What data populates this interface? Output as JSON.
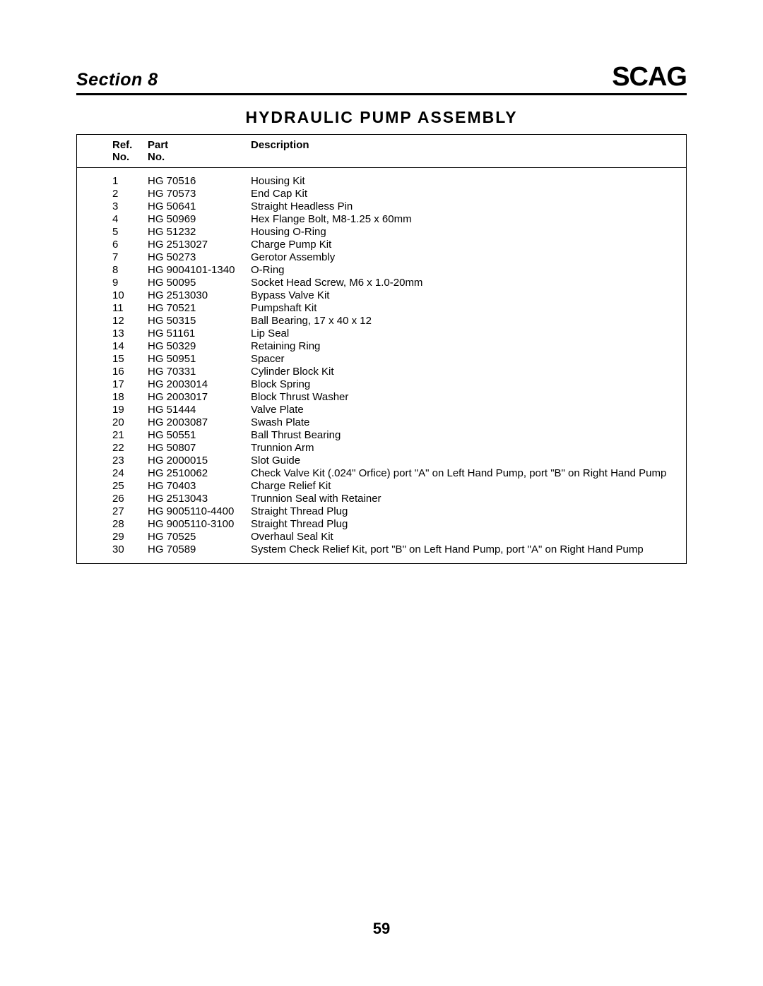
{
  "header": {
    "section_label": "Section 8",
    "logo_text": "SCAG"
  },
  "title": "HYDRAULIC  PUMP ASSEMBLY",
  "table": {
    "columns": {
      "refno_line1": "Ref.",
      "refno_line2": "No.",
      "partno_line1": "Part",
      "partno_line2": "No.",
      "desc_line1": "",
      "desc_line2": "Description"
    },
    "rows": [
      {
        "ref": "1",
        "part": "HG 70516",
        "desc": "Housing Kit"
      },
      {
        "ref": "2",
        "part": "HG 70573",
        "desc": "End Cap Kit"
      },
      {
        "ref": "3",
        "part": "HG 50641",
        "desc": "Straight Headless Pin"
      },
      {
        "ref": "4",
        "part": "HG 50969",
        "desc": "Hex Flange Bolt, M8-1.25 x 60mm"
      },
      {
        "ref": "5",
        "part": "HG 51232",
        "desc": "Housing O-Ring"
      },
      {
        "ref": "6",
        "part": "HG 2513027",
        "desc": "Charge Pump Kit"
      },
      {
        "ref": "7",
        "part": "HG 50273",
        "desc": "Gerotor Assembly"
      },
      {
        "ref": "8",
        "part": "HG 9004101-1340",
        "desc": "O-Ring"
      },
      {
        "ref": "9",
        "part": "HG 50095",
        "desc": "Socket Head Screw, M6 x 1.0-20mm"
      },
      {
        "ref": "10",
        "part": "HG 2513030",
        "desc": "Bypass Valve Kit"
      },
      {
        "ref": "11",
        "part": "HG 70521",
        "desc": "Pumpshaft Kit"
      },
      {
        "ref": "12",
        "part": "HG 50315",
        "desc": "Ball Bearing, 17 x 40 x 12"
      },
      {
        "ref": "13",
        "part": "HG 51161",
        "desc": "Lip Seal"
      },
      {
        "ref": "14",
        "part": "HG 50329",
        "desc": "Retaining Ring"
      },
      {
        "ref": "15",
        "part": "HG 50951",
        "desc": "Spacer"
      },
      {
        "ref": "16",
        "part": "HG 70331",
        "desc": "Cylinder Block Kit"
      },
      {
        "ref": "17",
        "part": "HG 2003014",
        "desc": "Block Spring"
      },
      {
        "ref": "18",
        "part": "HG 2003017",
        "desc": "Block Thrust Washer"
      },
      {
        "ref": "19",
        "part": "HG 51444",
        "desc": "Valve Plate"
      },
      {
        "ref": "20",
        "part": "HG 2003087",
        "desc": "Swash Plate"
      },
      {
        "ref": "21",
        "part": "HG 50551",
        "desc": "Ball Thrust Bearing"
      },
      {
        "ref": "22",
        "part": "HG 50807",
        "desc": "Trunnion Arm"
      },
      {
        "ref": "23",
        "part": "HG 2000015",
        "desc": "Slot Guide"
      },
      {
        "ref": "24",
        "part": "HG 2510062",
        "desc": "Check Valve Kit (.024\" Orfice) port \"A\" on Left Hand Pump, port \"B\" on Right Hand Pump"
      },
      {
        "ref": "25",
        "part": "HG 70403",
        "desc": "Charge Relief Kit"
      },
      {
        "ref": "26",
        "part": "HG 2513043",
        "desc": "Trunnion Seal with Retainer"
      },
      {
        "ref": "27",
        "part": "HG 9005110-4400",
        "desc": "Straight Thread Plug"
      },
      {
        "ref": "28",
        "part": "HG 9005110-3100",
        "desc": "Straight Thread Plug"
      },
      {
        "ref": "29",
        "part": "HG 70525",
        "desc": "Overhaul Seal Kit"
      },
      {
        "ref": "30",
        "part": "HG 70589",
        "desc": "System Check Relief Kit, port \"B\" on Left Hand Pump, port \"A\" on Right Hand Pump"
      }
    ]
  },
  "page_number": "59"
}
